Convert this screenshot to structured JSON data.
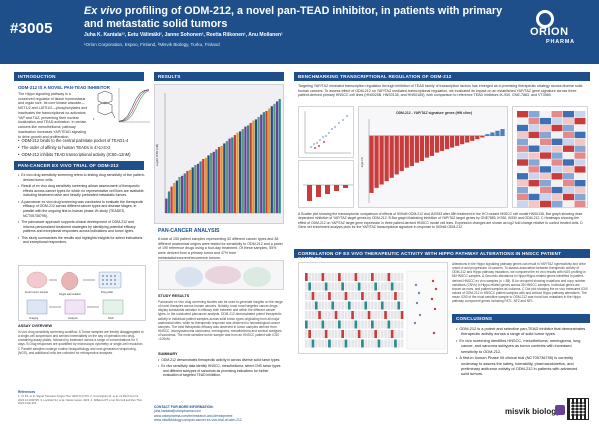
{
  "poster": {
    "number": "#3005",
    "title_drug": "Ex vivo",
    "title_rest": " profiling of ODM-212, a novel pan-TEAD inhibitor, in patients with primary and metastatic solid tumors",
    "authors": "Juha K. Kantala¹², Eetu Välimäki², Janne Sohonen², Reetta Riikonen¹, Anu Moilanen¹",
    "affiliations": "¹Orion Corporation, Espoo, Finland, ²Misvik Biology, Turku, Finland",
    "logo_word": "ORION",
    "logo_sub": "PHARMA"
  },
  "introduction": {
    "heading": "INTRODUCTION",
    "subheading": "ODM-212 IS A NOVEL PAN-TEAD INHIBITOR",
    "body": "The Hippo signaling pathway is a conserved regulator of tissue homeostasis and organ size. Its core kinase cascade—MST1/2 and LATS1/2—phosphorylates and inactivates the transcriptional co-activators YAP and TAZ, preventing their nuclear localization and TEAD activation. In certain cancers like mesothelioma, pathway inactivation increases YAP/TEAD signaling to drive growth and proliferation.",
    "bullets": [
      "ODM-212 binds to the central palmitate pocket of TEAD1-4",
      "The order of affinity to human TEADs is 4>1>3>2",
      "ODM-212 inhibits TEAD transcriptional activity (IC50=12nM)"
    ]
  },
  "pancancer": {
    "heading": "PAN-CANCER EX VIVO TRIAL OF ODM-212",
    "bullets": [
      "Ex vivo drug sensitivity screening refers to testing drug sensitivity of live patient-derived tumor cells.",
      "Result of ex vivo drug sensitivity screening allows assessment of therapeutic effects across cancer types for which no representative cell lines are available, including treatment naïve and heavily pretreated metastatic tumors.",
      "A pancancer ex vivo drug screening was conducted to evaluate the therapeutic efficacy of ODM-212 across different cancer types and disease stages, in parallel with the ongoing first-in-human phase I/II study (TEADES, NCT05736795).",
      "The pancancer approach supports clinical development of ODM-212 and informs personalized treatment strategies by identifying potential efficacy patterns and exceptional responses across indications and tumor types.",
      "This study summarizes the results and highlights insights for select indications and exceptional responders."
    ],
    "assay_heading": "ASSAY OVERVIEW",
    "assay_body": "In vivo drug sensitivity screening workflow. A Tumor samples are freshly disaggregated to a single-cell suspension and seeded immediately on the day of operation into drug-containing assay plates, followed by treatment across a range of concentrations for 4 days. B Drug responses are quantified by microscopic cytometry or single-cell resolution. C Parallel samples undergo routine histopathology and next-generation sequencing (NGS), and additional cells are collected for retrospective analyses.",
    "diagram_labels": [
      "Fresh tumor sample",
      "Single cell isolation",
      "Drug plate",
      "Imaging",
      "Analysis",
      "NGS"
    ]
  },
  "results": {
    "heading": "RESULTS",
    "pancancer_heading": "PAN-CANCER ANALYSIS",
    "pancancer_body": "A total of 155 patient samples representing 52 different cancer types and 38 different anatomical origins were tested for sensitivity to ODM-212 and a panel of 190 reference drugs using a four-day treatment. Of these samples, 55% were derived from a primary tumor and 47% from metastatic/recurrent/recurrence tumors.",
    "insights_heading": "STUDY RESULTS",
    "insights_body": "Pancancer ex vivo drug screening studies can be used to generate insights on the range of novel therapies across human cancers. Notably, most novel targeted cancer drugs display substantial variation in efficacy both between and within the different cancer types. In the conducted pancancer analysis, ODM-212 demonstrated potent therapeutic activity in individual patient samples across solid tumor types originating from all major anatomical sites, while no therapeutic response was observed in hematological cancer samples. The best therapeutic efficacy was observed in tumor samples derived from HNSCC, leiomyosarcoma carcinoma, meningioma, mesothelioma and several subtypes of sarcomas. The most sensitive tumor sample was from an HNSCC patient with IC50 <100nM.",
    "summary_heading": "SUMMARY",
    "summary_bullets": [
      "ODM-212 demonstrates therapeutic activity in across diverse solid tumor types.",
      "Ex vivo sensitivity data identify HNSCC, mesothelioma, select CNS tumor types and different subtypes of sarcomas as promising indications for further evaluation of targeted TEAD inhibition."
    ]
  },
  "benchmark": {
    "heading": "BENCHMARKING TRANSCRIPTIONAL REGULATION OF ODM-212",
    "body": "Targeting YAP/TAZ mediated transcription regulation through inhibition of TEAD family of transcription factors has emerged as a promising therapeutic strategy across diverse solid human cancers. To assess effect of ODM-212 on YAP/TAZ mediated transcriptional regulation, we evaluated its impact on an established YAP/TAZ gene signature across three patient-derived primary HNSCC cell lines (HN0025B, HNS0136, and HNS0165), with comparison to reference TEAD inhibitors IK-930, GNE-7883, and VT3989.",
    "panel_title": "ODM-212 - YAP/TAZ signature genes (HW cline)",
    "caption": "A Scatter plot showing the transcriptomic comparison of effects of 500nM ODM-212 and IAG933 after 48h treatment in the HCI mutant HNSCC cell model HNS0136. Bar graph showing dose dependent inhibition of YAP/TAZ target genes by ODM-212. B Bar graph illustrating inhibition of YAP/TAZ target genes by GNE7883, IK930, IK930 and ODM-212. C Heatmaps showing the effect of ODM-212 on YAP/TAZ target gene expression in three patient-derived HNSCC model cell lines. Expression changes are shown as log2 fold change relative to control treated cells. D Gene set enrichment analysis plots for the YAP/TAZ transcriptional signature in response to 500nM ODM-212."
  },
  "correlation": {
    "heading": "CORRELATION OF EX VIVO THERAPEUTIC ACTIVITY WITH HIPPO PATHWAY ALTERATIONS IN HNSCC PATIENT SAMPLES",
    "body": "Alterations in the Hippo signalling pathway genes can result in YAP/TAZ hyperactivity and drive onset of and progression of cancers. To assess association between therapeutic activity of ODM-212 and Hippo pathway mutations, we compared the ex vivo results with NGS profiling in 58 HNSCC samples. A Genomic alterations in Hippo/Hippo-related genes identified in patient-derived HNSCC ex vivo samples (n = 58). B An oncoprint showing mutations and copy number variations (CNVs) in Hippo-related genes across 38 HNSCC samples. Individual genes are shown as rows, and patient samples as columns. C Dot plot showing the ex vivo measured IC50 values of ODM-212 in HNSCC patient samples with and without Hippo pathway alterations. The mean IC50 of the most sensitive sample to ODM-212 was found two mutations in the Hippo pathway component genes including FAT1, NF2 and NF1."
  },
  "conclusions": {
    "heading": "CONCLUSIONS",
    "bullets": [
      "ODM-212 is a potent and selective pan-TEAD inhibitor that demonstrates therapeutic activity across a range of solid tumor types.",
      "Ex vivo screening identifies HNSCC, mesothelioma, meningioma, lung cancer, and sarcoma subtypes as tumor contexts with increased sensitivity to ODM-212.",
      "A first-in-human Phase I/II clinical trial (NCT05736795) is currently underway to assess the safety, tolerability, pharmacokinetics, and preliminary antitumor activity of ODM-212 in patients with advanced solid tumors."
    ]
  },
  "footer": {
    "references_heading": "References",
    "references": "1. Yu FX, et al. Signal Transduct Target Ther. 2022;7(1):376. 2. Cunningham R, et al. Int Biol Front Int. 2023;14:1042725. 3. Lockhart SJ, et al. Nature Genet. 2023. 4. Williams RT, et al. Dis Cell and Dev Ther. 2023;14(3):401.",
    "contact_heading": "CONTACT FOR MORE INFORMATION:",
    "contact_lines": [
      "juha.kantala@orionpharma.com",
      "www.orionpharma.com/en/research-and-development",
      "www.misvikbiology.com/pan-cancer-ex-vivo-trial-of-odm-212"
    ],
    "partner_logo": "misvik biology"
  },
  "chart_data": [
    {
      "type": "line",
      "title": "",
      "xlabel": "log [ODM-212]",
      "ylabel": "% Inhibition",
      "ylim": [
        0,
        100
      ],
      "series": [
        {
          "name": "TEAD4",
          "x": [
            -10,
            -9.5,
            -9,
            -8.5,
            -8,
            -7.5,
            -7,
            -6.5
          ],
          "values": [
            2,
            6,
            18,
            42,
            70,
            88,
            96,
            98
          ]
        },
        {
          "name": "TEAD1",
          "x": [
            -10,
            -9.5,
            -9,
            -8.5,
            -8,
            -7.5,
            -7,
            -6.5
          ],
          "values": [
            1,
            4,
            12,
            30,
            58,
            80,
            93,
            97
          ]
        },
        {
          "name": "TEAD3",
          "x": [
            -10,
            -9.5,
            -9,
            -8.5,
            -8,
            -7.5,
            -7,
            -6.5
          ],
          "values": [
            0,
            2,
            7,
            20,
            44,
            70,
            88,
            95
          ]
        }
      ]
    },
    {
      "type": "bar",
      "title": "",
      "xlabel": "",
      "ylabel": "Log10 IC50 (nM)",
      "ylim": [
        0,
        100
      ],
      "values": [
        12,
        18,
        22,
        25,
        27,
        30,
        31,
        33,
        35,
        36,
        38,
        40,
        41,
        43,
        45,
        46,
        48,
        50,
        51,
        53,
        55,
        56,
        58,
        60,
        62,
        63,
        65,
        67,
        68,
        70,
        72,
        73,
        75,
        77,
        78,
        80,
        82,
        84,
        85,
        87,
        89,
        91,
        93,
        95
      ]
    },
    {
      "type": "bar",
      "title": "ODM-212 - YAP/TAZ signature genes (HW cline)",
      "xlabel": "",
      "ylabel": "log2 FC",
      "ylim": [
        -4,
        1
      ],
      "values": [
        -3.4,
        -3.1,
        -2.9,
        -2.7,
        -2.5,
        -2.3,
        -2.1,
        -1.9,
        -1.8,
        -1.6,
        -1.5,
        -1.3,
        -1.2,
        -1.0,
        -0.9,
        -0.8,
        -0.7,
        -0.6,
        -0.5,
        -0.4,
        -0.3,
        -0.2,
        -0.1,
        0.1,
        0.2,
        0.3,
        0.4
      ]
    }
  ]
}
